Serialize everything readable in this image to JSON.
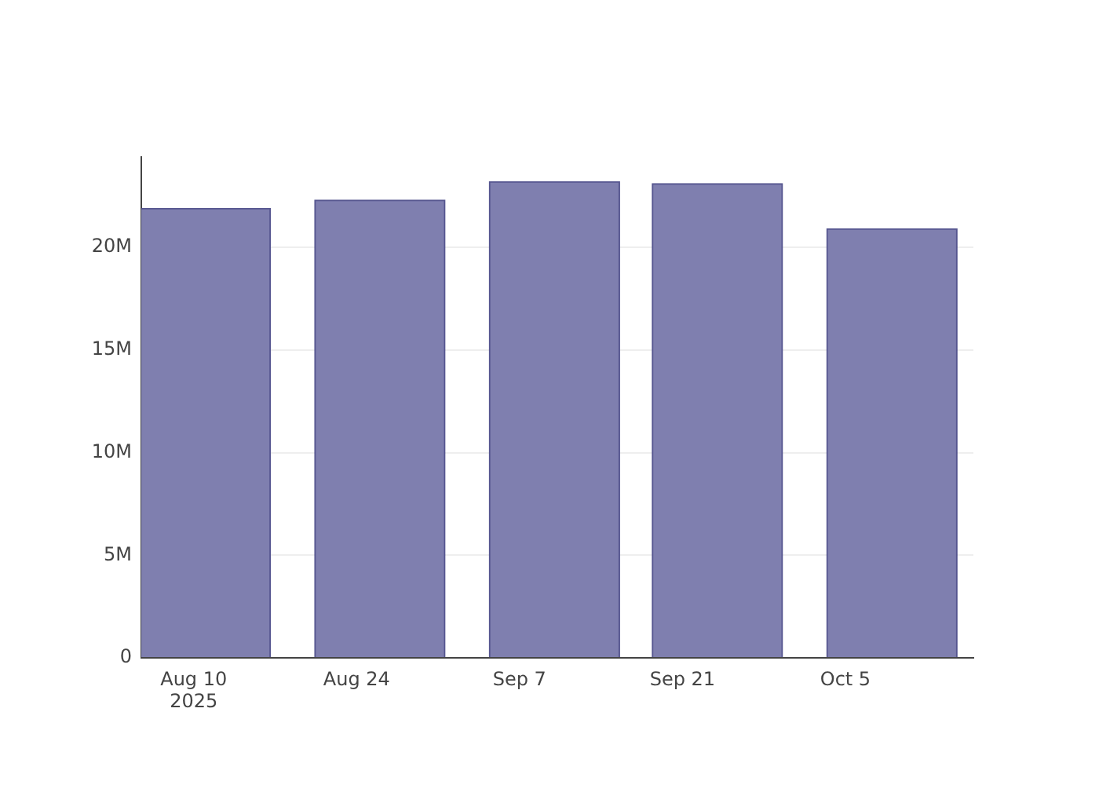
{
  "chart_data": {
    "type": "bar",
    "x": [
      "2025-08-11",
      "2025-08-26",
      "2025-09-10",
      "2025-09-24",
      "2025-10-09"
    ],
    "values": [
      21900000,
      22300000,
      23200000,
      23100000,
      20900000
    ],
    "color": "#7f7faf",
    "ylim": [
      0,
      24400000
    ],
    "xlim": [
      "2025-08-05T12:00",
      "2025-10-16"
    ],
    "xticks": [
      {
        "value": "2025-08-10",
        "label": "Aug 10\n2025"
      },
      {
        "value": "2025-08-24",
        "label": "Aug 24"
      },
      {
        "value": "2025-09-07",
        "label": "Sep 7"
      },
      {
        "value": "2025-09-21",
        "label": "Sep 21"
      },
      {
        "value": "2025-10-05",
        "label": "Oct 5"
      }
    ],
    "yticks": [
      {
        "value": 0,
        "label": "0"
      },
      {
        "value": 5000000,
        "label": "5M"
      },
      {
        "value": 10000000,
        "label": "10M"
      },
      {
        "value": 15000000,
        "label": "15M"
      },
      {
        "value": 20000000,
        "label": "20M"
      }
    ],
    "grid": "y"
  }
}
